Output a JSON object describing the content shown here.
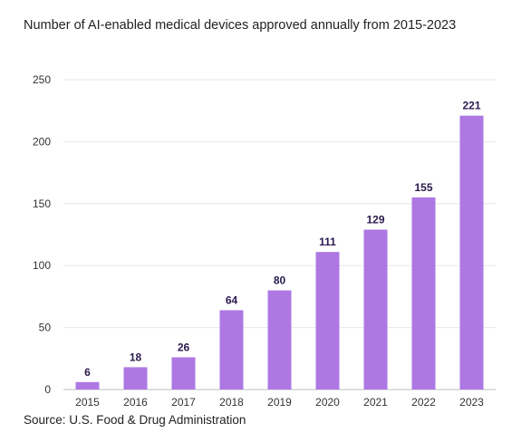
{
  "chart_data": {
    "type": "bar",
    "title": "Number of AI-enabled medical devices approved annually from 2015-2023",
    "source": "Source: U.S. Food & Drug Administration",
    "xlabel": "",
    "ylabel": "",
    "categories": [
      "2015",
      "2016",
      "2017",
      "2018",
      "2019",
      "2020",
      "2021",
      "2022",
      "2023"
    ],
    "values": [
      6,
      18,
      26,
      64,
      80,
      111,
      129,
      155,
      221
    ],
    "ylim": [
      0,
      250
    ],
    "yticks": [
      0,
      50,
      100,
      150,
      200,
      250
    ],
    "grid": true,
    "legend": "none",
    "colors": {
      "bar": "#ae78e3",
      "label": "#2a1a4f",
      "grid": "#e6e6e6"
    }
  }
}
